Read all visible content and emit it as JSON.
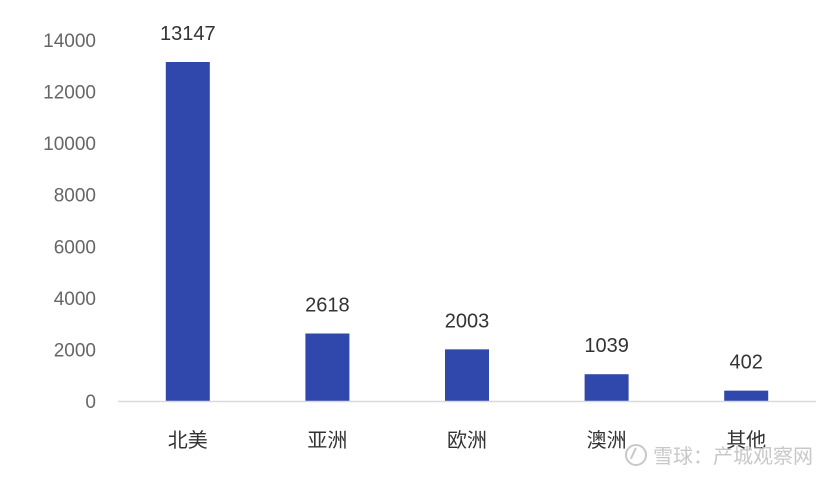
{
  "chart_data": {
    "type": "bar",
    "categories": [
      "北美",
      "亚洲",
      "欧洲",
      "澳洲",
      "其他"
    ],
    "values": [
      13147,
      2618,
      2003,
      1039,
      402
    ],
    "yticks": [
      "0",
      "2000",
      "4000",
      "6000",
      "8000",
      "10000",
      "12000",
      "14000"
    ],
    "ylim": [
      0,
      14000
    ],
    "grid": false,
    "bar_color": "#3047ab",
    "axis_color": "#d9d9d9"
  },
  "watermark": {
    "text": "雪球：产城观察网",
    "icon": "snowball-logo-icon"
  }
}
